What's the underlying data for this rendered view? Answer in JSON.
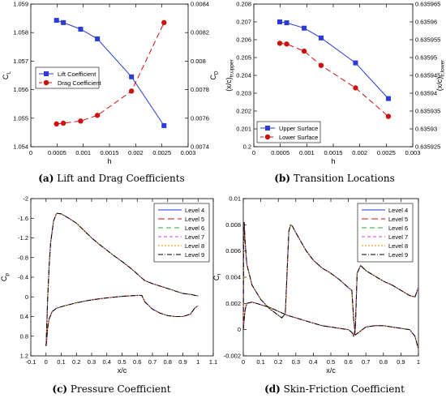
{
  "chart_data": [
    {
      "id": "a",
      "type": "line",
      "caption_label": "(a)",
      "caption_text": "Lift and Drag Coefficients",
      "xlabel": "h",
      "ylabel": "C",
      "ylabel_sub": "L",
      "y2label": "C",
      "y2label_sub": "D",
      "xlim": [
        0,
        0.003
      ],
      "ylim": [
        1.054,
        1.059
      ],
      "y2lim": [
        0.0074,
        0.0084
      ],
      "xticks": [
        0,
        0.0005,
        0.001,
        0.0015,
        0.002,
        0.0025,
        0.003
      ],
      "xticklabels": [
        "0",
        "0.0005",
        "0.001",
        "0.0015",
        "0.002",
        "0.0025",
        "0.003"
      ],
      "yticks": [
        1.054,
        1.055,
        1.056,
        1.057,
        1.058,
        1.059
      ],
      "yticklabels": [
        "1.054",
        "1.055",
        "1.056",
        "1.057",
        "1.058",
        "1.059"
      ],
      "y2ticks": [
        0.0074,
        0.0076,
        0.0078,
        0.008,
        0.0082,
        0.0084
      ],
      "y2ticklabels": [
        "0.0074",
        "0.0076",
        "0.0078",
        "0.008",
        "0.0082",
        "0.0084"
      ],
      "legend_position": "middle-left",
      "series": [
        {
          "name": "Lift Coefficient",
          "axis": "left",
          "color": "#2a3bd8",
          "dash": "",
          "marker": "square",
          "x": [
            0.00049,
            0.00062,
            0.00095,
            0.00127,
            0.00192,
            0.00254
          ],
          "y": [
            1.05843,
            1.05835,
            1.05812,
            1.05778,
            1.05645,
            1.05474
          ]
        },
        {
          "name": "Drag Coefficient",
          "axis": "right",
          "color": "#cc1111",
          "dash": "7,4",
          "marker": "circle",
          "x": [
            0.00049,
            0.00062,
            0.00095,
            0.00127,
            0.00192,
            0.00254
          ],
          "y": [
            0.00756,
            0.007565,
            0.00758,
            0.00762,
            0.00779,
            0.00827
          ]
        }
      ]
    },
    {
      "id": "b",
      "type": "line",
      "caption_label": "(b)",
      "caption_text": "Transition Locations",
      "xlabel": "h",
      "ylabel": "(x/c)",
      "ylabel_sub": "tr,upper",
      "y2label": "(x/c)",
      "y2label_sub": "tr,lower",
      "xlim": [
        0,
        0.003
      ],
      "ylim": [
        0.2,
        0.208
      ],
      "y2lim": [
        0.635925,
        0.635965
      ],
      "xticks": [
        0,
        0.0005,
        0.001,
        0.0015,
        0.002,
        0.0025,
        0.003
      ],
      "xticklabels": [
        "0",
        "0.0005",
        "0.001",
        "0.0015",
        "0.002",
        "0.0025",
        "0.003"
      ],
      "yticks": [
        0.2,
        0.201,
        0.202,
        0.203,
        0.204,
        0.205,
        0.206,
        0.207,
        0.208
      ],
      "yticklabels": [
        "0.2",
        "0.201",
        "0.202",
        "0.203",
        "0.204",
        "0.205",
        "0.206",
        "0.207",
        "0.208"
      ],
      "y2ticks": [
        0.635925,
        0.63593,
        0.635935,
        0.63594,
        0.635945,
        0.63595,
        0.635955,
        0.63596,
        0.635965
      ],
      "y2ticklabels": [
        "0.635925",
        "0.63593",
        "0.635935",
        "0.63594",
        "0.635945",
        "0.63595",
        "0.635955",
        "0.63596",
        "0.635965"
      ],
      "legend_position": "bottom-left",
      "series": [
        {
          "name": "Upper Surface",
          "axis": "left",
          "color": "#2a3bd8",
          "dash": "",
          "marker": "square",
          "x": [
            0.00049,
            0.00062,
            0.00095,
            0.00127,
            0.00192,
            0.00254
          ],
          "y": [
            0.207,
            0.20695,
            0.20665,
            0.2061,
            0.2047,
            0.2027
          ]
        },
        {
          "name": "Lower Surface",
          "axis": "right",
          "color": "#cc1111",
          "dash": "7,4",
          "marker": "circle",
          "x": [
            0.00049,
            0.00062,
            0.00095,
            0.00127,
            0.00192,
            0.00254
          ],
          "y": [
            0.635954,
            0.6359538,
            0.6359518,
            0.6359478,
            0.6359415,
            0.6359335
          ]
        }
      ]
    },
    {
      "id": "c",
      "type": "line",
      "caption_label": "(c)",
      "caption_text": "Pressure Coefficient",
      "xlabel": "x/c",
      "ylabel": "C",
      "ylabel_sub": "p",
      "xlim": [
        -0.1,
        1.1
      ],
      "ylim": [
        1.2,
        -2
      ],
      "y_inverted": true,
      "xticks": [
        -0.1,
        0,
        0.1,
        0.2,
        0.3,
        0.4,
        0.5,
        0.6,
        0.7,
        0.8,
        0.9,
        1,
        1.1
      ],
      "xticklabels": [
        "-0.1",
        "0",
        "0.1",
        "0.2",
        "0.3",
        "0.4",
        "0.5",
        "0.6",
        "0.7",
        "0.8",
        "0.9",
        "1",
        "1.1"
      ],
      "yticks": [
        -2,
        -1.6,
        -1.2,
        -0.8,
        -0.4,
        0,
        0.4,
        0.8,
        1.2
      ],
      "yticklabels": [
        "-2",
        "-1.6",
        "-1.2",
        "-0.8",
        "-0.4",
        "0",
        "0.4",
        "0.8",
        "1.2"
      ],
      "legend_position": "top-right",
      "legend": [
        {
          "name": "Level 4",
          "color": "#2a3bd8",
          "dash": ""
        },
        {
          "name": "Level 5",
          "color": "#cc1111",
          "dash": "8,4"
        },
        {
          "name": "Level 6",
          "color": "#22aa22",
          "dash": "6,4"
        },
        {
          "name": "Level 7",
          "color": "#d63fd6",
          "dash": "4,3"
        },
        {
          "name": "Level 8",
          "color": "#ee8800",
          "dash": "2,2"
        },
        {
          "name": "Level 9",
          "color": "#000000",
          "dash": "6,2,1,2"
        }
      ],
      "curves": [
        {
          "name": "upper surface",
          "x": [
            0.0,
            0.005,
            0.01,
            0.02,
            0.03,
            0.05,
            0.07,
            0.1,
            0.15,
            0.2,
            0.25,
            0.3,
            0.35,
            0.4,
            0.45,
            0.5,
            0.55,
            0.6,
            0.62,
            0.65,
            0.7,
            0.75,
            0.8,
            0.85,
            0.9,
            0.95,
            0.98,
            1.0
          ],
          "y": [
            1.0,
            0.6,
            0.1,
            -0.6,
            -1.1,
            -1.55,
            -1.7,
            -1.69,
            -1.6,
            -1.5,
            -1.35,
            -1.2,
            -1.07,
            -0.95,
            -0.83,
            -0.72,
            -0.6,
            -0.47,
            -0.41,
            -0.33,
            -0.27,
            -0.22,
            -0.17,
            -0.12,
            -0.07,
            -0.05,
            -0.03,
            -0.02
          ]
        },
        {
          "name": "lower surface",
          "x": [
            0.0,
            0.005,
            0.01,
            0.02,
            0.04,
            0.07,
            0.1,
            0.15,
            0.2,
            0.25,
            0.3,
            0.35,
            0.4,
            0.45,
            0.5,
            0.55,
            0.6,
            0.63,
            0.65,
            0.7,
            0.75,
            0.8,
            0.85,
            0.9,
            0.95,
            0.98,
            1.0
          ],
          "y": [
            1.0,
            0.85,
            0.65,
            0.45,
            0.3,
            0.23,
            0.2,
            0.16,
            0.12,
            0.09,
            0.06,
            0.04,
            0.02,
            0.005,
            -0.01,
            -0.02,
            -0.03,
            -0.03,
            0.1,
            0.25,
            0.33,
            0.38,
            0.4,
            0.4,
            0.35,
            0.22,
            0.18
          ]
        }
      ]
    },
    {
      "id": "d",
      "type": "line",
      "caption_label": "(d)",
      "caption_text": "Skin-Friction Coefficient",
      "xlabel": "x/c",
      "ylabel": "C",
      "ylabel_sub": "f",
      "xlim": [
        0,
        1
      ],
      "ylim": [
        -0.002,
        0.01
      ],
      "xticks": [
        0,
        0.1,
        0.2,
        0.3,
        0.4,
        0.5,
        0.6,
        0.7,
        0.8,
        0.9,
        1
      ],
      "xticklabels": [
        "0",
        "0.1",
        "0.2",
        "0.3",
        "0.4",
        "0.5",
        "0.6",
        "0.7",
        "0.8",
        "0.9",
        "1"
      ],
      "yticks": [
        -0.002,
        0,
        0.002,
        0.004,
        0.006,
        0.008,
        0.01
      ],
      "yticklabels": [
        "-0.002",
        "0",
        "0.002",
        "0.004",
        "0.006",
        "0.008",
        "0.01"
      ],
      "legend_position": "top-right",
      "legend": [
        {
          "name": "Level 4",
          "color": "#2a3bd8",
          "dash": ""
        },
        {
          "name": "Level 5",
          "color": "#cc1111",
          "dash": "8,4"
        },
        {
          "name": "Level 6",
          "color": "#22aa22",
          "dash": "6,4"
        },
        {
          "name": "Level 7",
          "color": "#d63fd6",
          "dash": "4,3"
        },
        {
          "name": "Level 8",
          "color": "#ee8800",
          "dash": "2,2"
        },
        {
          "name": "Level 9",
          "color": "#000000",
          "dash": "6,2,1,2"
        }
      ],
      "curves": [
        {
          "name": "upper surface",
          "x": [
            0.0,
            0.002,
            0.005,
            0.01,
            0.02,
            0.05,
            0.1,
            0.15,
            0.2,
            0.22,
            0.24,
            0.26,
            0.27,
            0.28,
            0.3,
            0.33,
            0.36,
            0.4,
            0.45,
            0.5,
            0.55,
            0.6,
            0.62,
            0.63,
            0.64,
            0.66,
            0.7,
            0.75,
            0.8,
            0.85,
            0.9,
            0.95,
            0.98,
            1.0
          ],
          "y": [
            0.0,
            0.006,
            0.0082,
            0.0068,
            0.005,
            0.0034,
            0.0023,
            0.0016,
            0.0011,
            0.0009,
            0.0012,
            0.0075,
            0.008,
            0.0079,
            0.0074,
            0.0067,
            0.006,
            0.0053,
            0.0047,
            0.0043,
            0.0038,
            0.0032,
            0.003,
            0.0008,
            -0.0004,
            -0.0002,
            0.0002,
            0.0003,
            0.0003,
            0.0002,
            0.0001,
            0.0,
            -0.0005,
            -0.0015
          ]
        },
        {
          "name": "lower surface",
          "x": [
            0.0,
            0.005,
            0.01,
            0.02,
            0.05,
            0.1,
            0.15,
            0.2,
            0.25,
            0.3,
            0.35,
            0.4,
            0.45,
            0.5,
            0.55,
            0.6,
            0.62,
            0.63,
            0.64,
            0.65,
            0.67,
            0.7,
            0.75,
            0.8,
            0.85,
            0.9,
            0.95,
            0.98,
            1.0
          ],
          "y": [
            0.0,
            0.0008,
            0.0015,
            0.002,
            0.0021,
            0.0019,
            0.0017,
            0.0014,
            0.0011,
            0.0009,
            0.0007,
            0.0005,
            0.0003,
            0.0002,
            0.0001,
            0.0,
            -0.0002,
            -0.0005,
            0.0001,
            0.0043,
            0.0049,
            0.0045,
            0.0041,
            0.0037,
            0.0034,
            0.003,
            0.0026,
            0.0025,
            0.0032
          ]
        }
      ]
    }
  ]
}
